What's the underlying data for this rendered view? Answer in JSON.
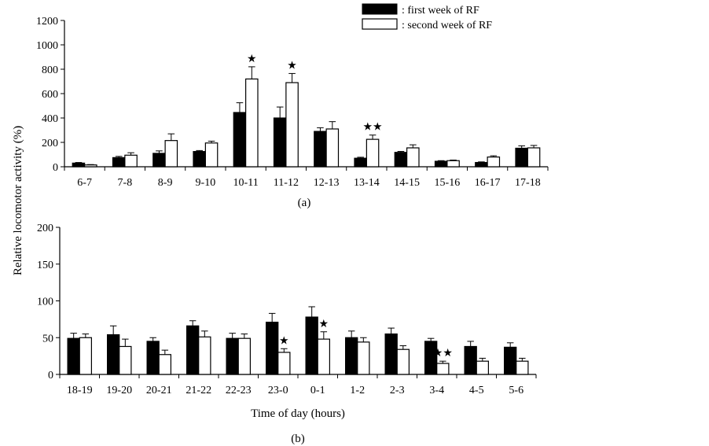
{
  "legend": {
    "series1": ": first week of RF",
    "series2": ": second week of RF"
  },
  "ylabel": "Relative locomotor activity (%)",
  "xlabel": "Time of day (hours)",
  "colors": {
    "first_week": "#000000",
    "second_week": "#ffffff",
    "stroke": "#000000"
  },
  "chart_data": [
    {
      "type": "bar",
      "panel_label": "(a)",
      "ylim": [
        0,
        1200
      ],
      "yticks": [
        "0",
        "200",
        "400",
        "600",
        "800",
        "1000",
        "1200"
      ],
      "categories": [
        "6-7",
        "7-8",
        "8-9",
        "9-10",
        "10-11",
        "11-12",
        "12-13",
        "13-14",
        "14-15",
        "15-16",
        "16-17",
        "17-18"
      ],
      "series": [
        {
          "name": "first week of RF",
          "values": [
            30,
            75,
            110,
            125,
            445,
            400,
            290,
            70,
            118,
            45,
            35,
            152
          ],
          "errors": [
            5,
            10,
            20,
            8,
            80,
            90,
            30,
            8,
            8,
            5,
            5,
            20
          ]
        },
        {
          "name": "second week of RF",
          "values": [
            15,
            95,
            215,
            195,
            720,
            690,
            310,
            225,
            155,
            50,
            80,
            155
          ],
          "errors": [
            3,
            20,
            55,
            15,
            100,
            75,
            60,
            35,
            25,
            5,
            10,
            20
          ]
        }
      ],
      "annotations": [
        {
          "category": "10-11",
          "series": "second week of RF",
          "label": "★"
        },
        {
          "category": "11-12",
          "series": "second week of RF",
          "label": "★"
        },
        {
          "category": "13-14",
          "series": "second week of RF",
          "label": "★★"
        }
      ]
    },
    {
      "type": "bar",
      "panel_label": "(b)",
      "ylim": [
        0,
        200
      ],
      "yticks": [
        "0",
        "50",
        "100",
        "150",
        "200"
      ],
      "categories": [
        "18-19",
        "19-20",
        "20-21",
        "21-22",
        "22-23",
        "23-0",
        "0-1",
        "1-2",
        "2-3",
        "3-4",
        "4-5",
        "5-6"
      ],
      "series": [
        {
          "name": "first week of RF",
          "values": [
            49,
            54,
            45,
            66,
            49,
            71,
            78,
            50,
            55,
            45,
            38,
            37
          ],
          "errors": [
            7,
            12,
            5,
            7,
            7,
            12,
            14,
            9,
            8,
            4,
            7,
            6
          ]
        },
        {
          "name": "second week of RF",
          "values": [
            50,
            38,
            27,
            51,
            49,
            30,
            48,
            44,
            34,
            15,
            18,
            18
          ],
          "errors": [
            5,
            10,
            6,
            8,
            6,
            5,
            10,
            6,
            5,
            3,
            4,
            4
          ]
        }
      ],
      "annotations": [
        {
          "category": "23-0",
          "series": "second week of RF",
          "label": "★"
        },
        {
          "category": "0-1",
          "series": "second week of RF",
          "label": "★"
        },
        {
          "category": "3-4",
          "series": "second week of RF",
          "label": "★★"
        }
      ]
    }
  ]
}
